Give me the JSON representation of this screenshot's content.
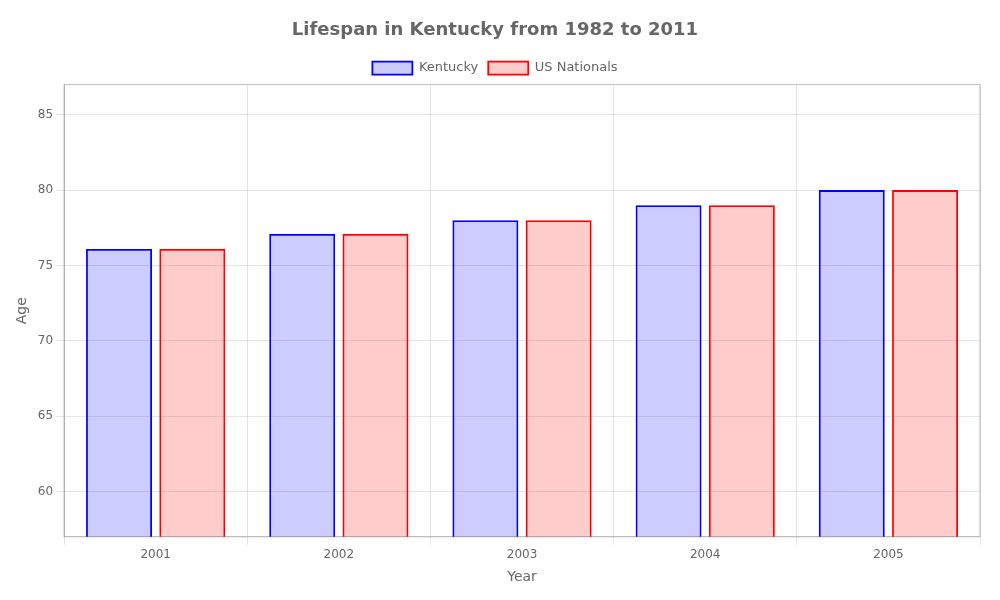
{
  "chart_data": {
    "type": "bar",
    "title": "Lifespan in Kentucky from 1982 to 2011",
    "xlabel": "Year",
    "ylabel": "Age",
    "categories": [
      "2001",
      "2002",
      "2003",
      "2004",
      "2005"
    ],
    "series": [
      {
        "name": "Kentucky",
        "color": "#0000ff",
        "values": [
          76.1,
          77.1,
          78.0,
          79.0,
          80.0
        ]
      },
      {
        "name": "US Nationals",
        "color": "#ff0000",
        "values": [
          76.1,
          77.1,
          78.0,
          79.0,
          80.0
        ]
      }
    ],
    "ylim": [
      57,
      87
    ],
    "yticks": [
      60,
      65,
      70,
      75,
      80,
      85
    ],
    "grid": true,
    "legend": "top"
  }
}
